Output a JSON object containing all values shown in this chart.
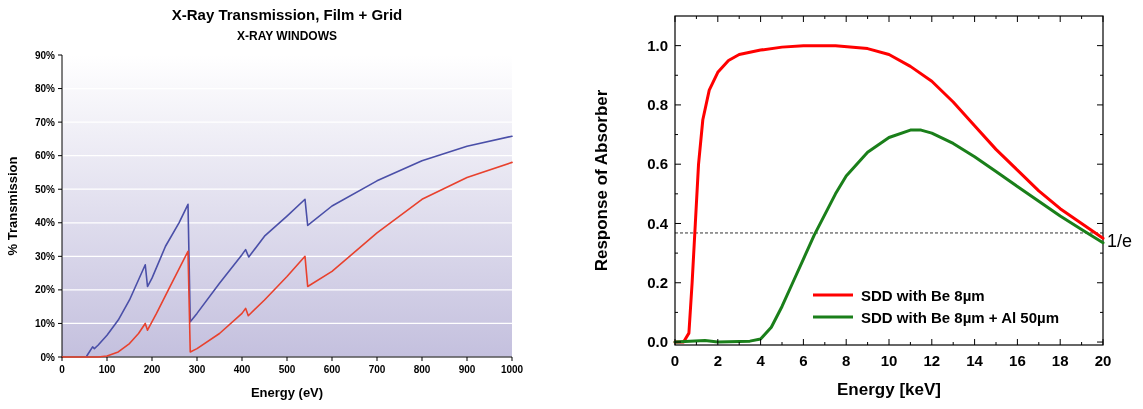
{
  "chart_data": [
    {
      "type": "line",
      "title": "X-Ray Transmission, Film + Grid",
      "subtitle": "X-RAY WINDOWS",
      "xlabel": "Energy (eV)",
      "ylabel": "% Transmission",
      "xlim": [
        0,
        1000
      ],
      "ylim": [
        0,
        90
      ],
      "xticks": [
        0,
        100,
        200,
        300,
        400,
        500,
        600,
        700,
        800,
        900,
        1000
      ],
      "yticks": [
        {
          "value": 0,
          "label": "0%"
        },
        {
          "value": 10,
          "label": "10%"
        },
        {
          "value": 20,
          "label": "20%"
        },
        {
          "value": 30,
          "label": "30%"
        },
        {
          "value": 40,
          "label": "40%"
        },
        {
          "value": 50,
          "label": "50%"
        },
        {
          "value": 60,
          "label": "60%"
        },
        {
          "value": 70,
          "label": "70%"
        },
        {
          "value": 80,
          "label": "80%"
        },
        {
          "value": 90,
          "label": "90%"
        }
      ],
      "grid": "y",
      "legend": false,
      "series": [
        {
          "color": "#4a4fa8",
          "x": [
            55,
            68,
            72,
            80,
            100,
            125,
            150,
            185,
            190,
            200,
            230,
            260,
            280,
            285,
            300,
            350,
            400,
            408,
            415,
            450,
            500,
            540,
            546,
            600,
            700,
            800,
            900,
            1000
          ],
          "values": [
            0.3,
            3,
            2.5,
            3.5,
            6.5,
            11,
            17,
            27.5,
            21,
            23.5,
            33,
            40,
            45.5,
            10.5,
            13,
            22,
            30.5,
            32,
            29.8,
            36,
            42,
            47,
            39.2,
            45,
            52.5,
            58.5,
            62.8,
            65.8
          ]
        },
        {
          "color": "#e8412d",
          "x": [
            0,
            80,
            100,
            125,
            150,
            170,
            185,
            190,
            210,
            240,
            280,
            285,
            300,
            350,
            400,
            408,
            414,
            450,
            500,
            540,
            546,
            600,
            700,
            800,
            900,
            1000
          ],
          "values": [
            0,
            0,
            0.3,
            1.5,
            4,
            7,
            10,
            8,
            13,
            21,
            31.5,
            1.5,
            2.5,
            7,
            13,
            14.5,
            12.3,
            17,
            24,
            30,
            21,
            25.5,
            37,
            47,
            53.5,
            58
          ]
        }
      ]
    },
    {
      "type": "line",
      "xlabel": "Energy [keV]",
      "ylabel": "Response of Absorber",
      "xlim": [
        0,
        20
      ],
      "ylim": [
        -0.01,
        1.1
      ],
      "xticks": [
        0,
        {
          "value": 1,
          "label": null
        },
        2,
        {
          "value": 3,
          "label": null
        },
        4,
        {
          "value": 5,
          "label": null
        },
        6,
        {
          "value": 7,
          "label": null
        },
        8,
        {
          "value": 9,
          "label": null
        },
        10,
        {
          "value": 11,
          "label": null
        },
        12,
        {
          "value": 13,
          "label": null
        },
        14,
        {
          "value": 15,
          "label": null
        },
        16,
        {
          "value": 17,
          "label": null
        },
        18,
        {
          "value": 19,
          "label": null
        },
        20
      ],
      "yticks": [
        {
          "value": 0,
          "label": "0.0"
        },
        {
          "value": 0.1,
          "label": null
        },
        {
          "value": 0.2,
          "label": "0.2"
        },
        {
          "value": 0.3,
          "label": null
        },
        {
          "value": 0.4,
          "label": "0.4"
        },
        {
          "value": 0.5,
          "label": null
        },
        {
          "value": 0.6,
          "label": "0.6"
        },
        {
          "value": 0.7,
          "label": null
        },
        {
          "value": 0.8,
          "label": "0.8"
        },
        {
          "value": 0.9,
          "label": null
        },
        {
          "value": 1,
          "label": "1.0"
        }
      ],
      "grid": false,
      "legend": "bottom right",
      "ref_lines": [
        {
          "axis": "y",
          "value": 0.368,
          "label": "1/e",
          "line_style": "dashed"
        }
      ],
      "series": [
        {
          "name": "SDD with Be 8µm",
          "color": "#ff0000",
          "x": [
            0,
            0.4,
            0.65,
            0.8,
            0.95,
            1.1,
            1.3,
            1.6,
            2,
            2.5,
            3,
            4,
            5,
            6,
            7.5,
            9,
            10,
            11,
            12,
            13,
            14,
            15,
            16,
            17,
            18,
            19,
            20
          ],
          "values": [
            0,
            0,
            0.03,
            0.2,
            0.4,
            0.6,
            0.75,
            0.85,
            0.91,
            0.95,
            0.97,
            0.985,
            0.995,
            1,
            1,
            0.99,
            0.97,
            0.93,
            0.88,
            0.81,
            0.73,
            0.65,
            0.58,
            0.51,
            0.45,
            0.4,
            0.35
          ]
        },
        {
          "name": "SDD with Be 8µm + Al 50µm",
          "color": "#1a7f1a",
          "x": [
            0,
            1.4,
            2,
            3.5,
            4,
            4.5,
            5,
            5.5,
            6,
            6.5,
            7,
            7.5,
            8,
            9,
            10,
            11,
            11.5,
            12,
            13,
            14,
            15,
            16,
            17,
            18,
            19,
            20
          ],
          "values": [
            0,
            0.005,
            0,
            0.003,
            0.01,
            0.05,
            0.12,
            0.2,
            0.28,
            0.36,
            0.43,
            0.5,
            0.56,
            0.64,
            0.69,
            0.715,
            0.715,
            0.705,
            0.67,
            0.625,
            0.575,
            0.525,
            0.475,
            0.425,
            0.38,
            0.335
          ]
        }
      ]
    }
  ]
}
